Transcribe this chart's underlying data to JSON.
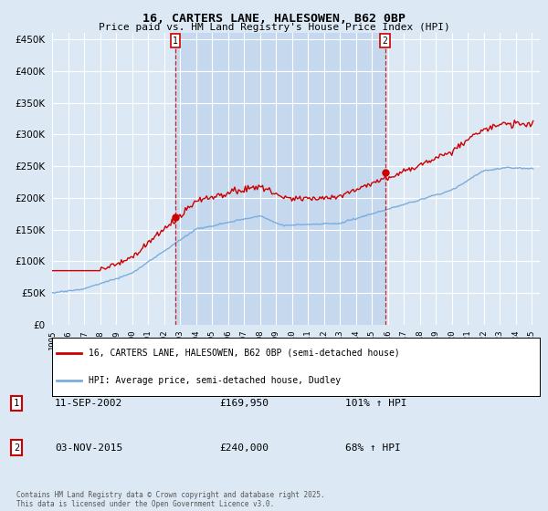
{
  "title": "16, CARTERS LANE, HALESOWEN, B62 0BP",
  "subtitle": "Price paid vs. HM Land Registry's House Price Index (HPI)",
  "background_color": "#dce9f5",
  "plot_bg_color": "#dce9f5",
  "shade_color": "#c5d8ee",
  "hpi_color": "#7aaddc",
  "price_color": "#cc0000",
  "ylim": [
    0,
    460000
  ],
  "yticks": [
    0,
    50000,
    100000,
    150000,
    200000,
    250000,
    300000,
    350000,
    400000,
    450000
  ],
  "sale1_t": 2002.708,
  "sale1_price": 169950,
  "sale2_t": 2015.833,
  "sale2_price": 240000,
  "legend_label1": "16, CARTERS LANE, HALESOWEN, B62 0BP (semi-detached house)",
  "legend_label2": "HPI: Average price, semi-detached house, Dudley",
  "footnote": "Contains HM Land Registry data © Crown copyright and database right 2025.\nThis data is licensed under the Open Government Licence v3.0.",
  "xstart_year": 1995,
  "xend_year": 2025
}
